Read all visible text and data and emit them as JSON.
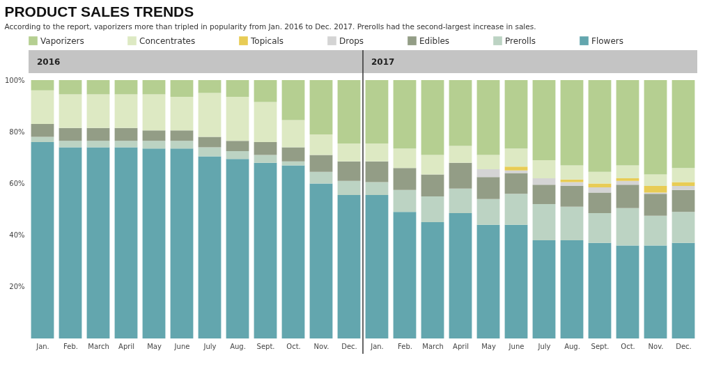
{
  "chart_data": {
    "type": "bar",
    "stacked": true,
    "title": "PRODUCT SALES TRENDS",
    "subtitle": "According to the report, vaporizers more than tripled in popularity from Jan. 2016 to Dec. 2017. Prerolls had the second-largest increase in sales.",
    "annotations": [
      "2016",
      "2017"
    ],
    "categories": [
      "Jan.",
      "Feb.",
      "March",
      "April",
      "May",
      "June",
      "July",
      "Aug.",
      "Sept.",
      "Oct.",
      "Nov.",
      "Dec.",
      "Jan.",
      "Feb.",
      "March",
      "April",
      "May",
      "June",
      "July",
      "Aug.",
      "Sept.",
      "Oct.",
      "Nov.",
      "Dec."
    ],
    "ylim": [
      0,
      100
    ],
    "yticks": [
      {
        "value": 20,
        "label": "20%"
      },
      {
        "value": 40,
        "label": "40%"
      },
      {
        "value": 60,
        "label": "60%"
      },
      {
        "value": 80,
        "label": "80%"
      },
      {
        "value": 100,
        "label": "100%"
      }
    ],
    "legend": "top",
    "series": [
      {
        "name": "Flowers",
        "color": "#63a6ae",
        "values": [
          76,
          74,
          74,
          74,
          73.5,
          73.5,
          70.5,
          69.5,
          68,
          67,
          60,
          55.5,
          55.5,
          49,
          45,
          48.5,
          44,
          44,
          38,
          38,
          37,
          36,
          36,
          37
        ]
      },
      {
        "name": "Prerolls",
        "color": "#bcd3c3",
        "values": [
          2,
          2.5,
          2.5,
          2.5,
          3,
          3,
          3.5,
          3,
          3,
          1.5,
          4.5,
          5.5,
          5,
          8.5,
          10,
          9.5,
          10,
          12,
          14,
          13,
          11.5,
          14.5,
          11.5,
          12
        ]
      },
      {
        "name": "Edibles",
        "color": "#939d86",
        "values": [
          5,
          5,
          5,
          5,
          4,
          4,
          4,
          4,
          5,
          5.5,
          6.5,
          7.5,
          8,
          8.5,
          8.5,
          10,
          8.5,
          8,
          7.5,
          8,
          8,
          9,
          8.5,
          8.5
        ]
      },
      {
        "name": "Drops",
        "color": "#d4d4d4",
        "values": [
          0,
          0,
          0,
          0,
          0,
          0,
          0,
          0,
          0,
          0,
          0,
          0,
          0,
          0,
          0,
          0,
          3,
          1,
          2.5,
          1.5,
          2,
          1.5,
          0.5,
          1.5
        ]
      },
      {
        "name": "Topicals",
        "color": "#e8cc55",
        "values": [
          0,
          0,
          0,
          0,
          0,
          0,
          0,
          0,
          0,
          0,
          0,
          0,
          0,
          0,
          0,
          0,
          0,
          1.5,
          0,
          1,
          1.5,
          1,
          2.5,
          1.5
        ]
      },
      {
        "name": "Concentrates",
        "color": "#dde9c3",
        "values": [
          13,
          13,
          13,
          13,
          14,
          13,
          17,
          17,
          15.5,
          10.5,
          8,
          7,
          7,
          7.5,
          7.5,
          6.5,
          5.5,
          7,
          7,
          5.5,
          4.5,
          5,
          4.5,
          5.5
        ]
      },
      {
        "name": "Vaporizers",
        "color": "#b5cf91",
        "values": [
          4,
          5.5,
          5.5,
          5.5,
          5.5,
          6.5,
          5,
          6.5,
          8.5,
          15.5,
          21,
          24.5,
          24.5,
          26.5,
          29,
          25.5,
          29,
          26.5,
          31,
          33,
          35.5,
          33,
          36.5,
          34
        ]
      }
    ]
  }
}
